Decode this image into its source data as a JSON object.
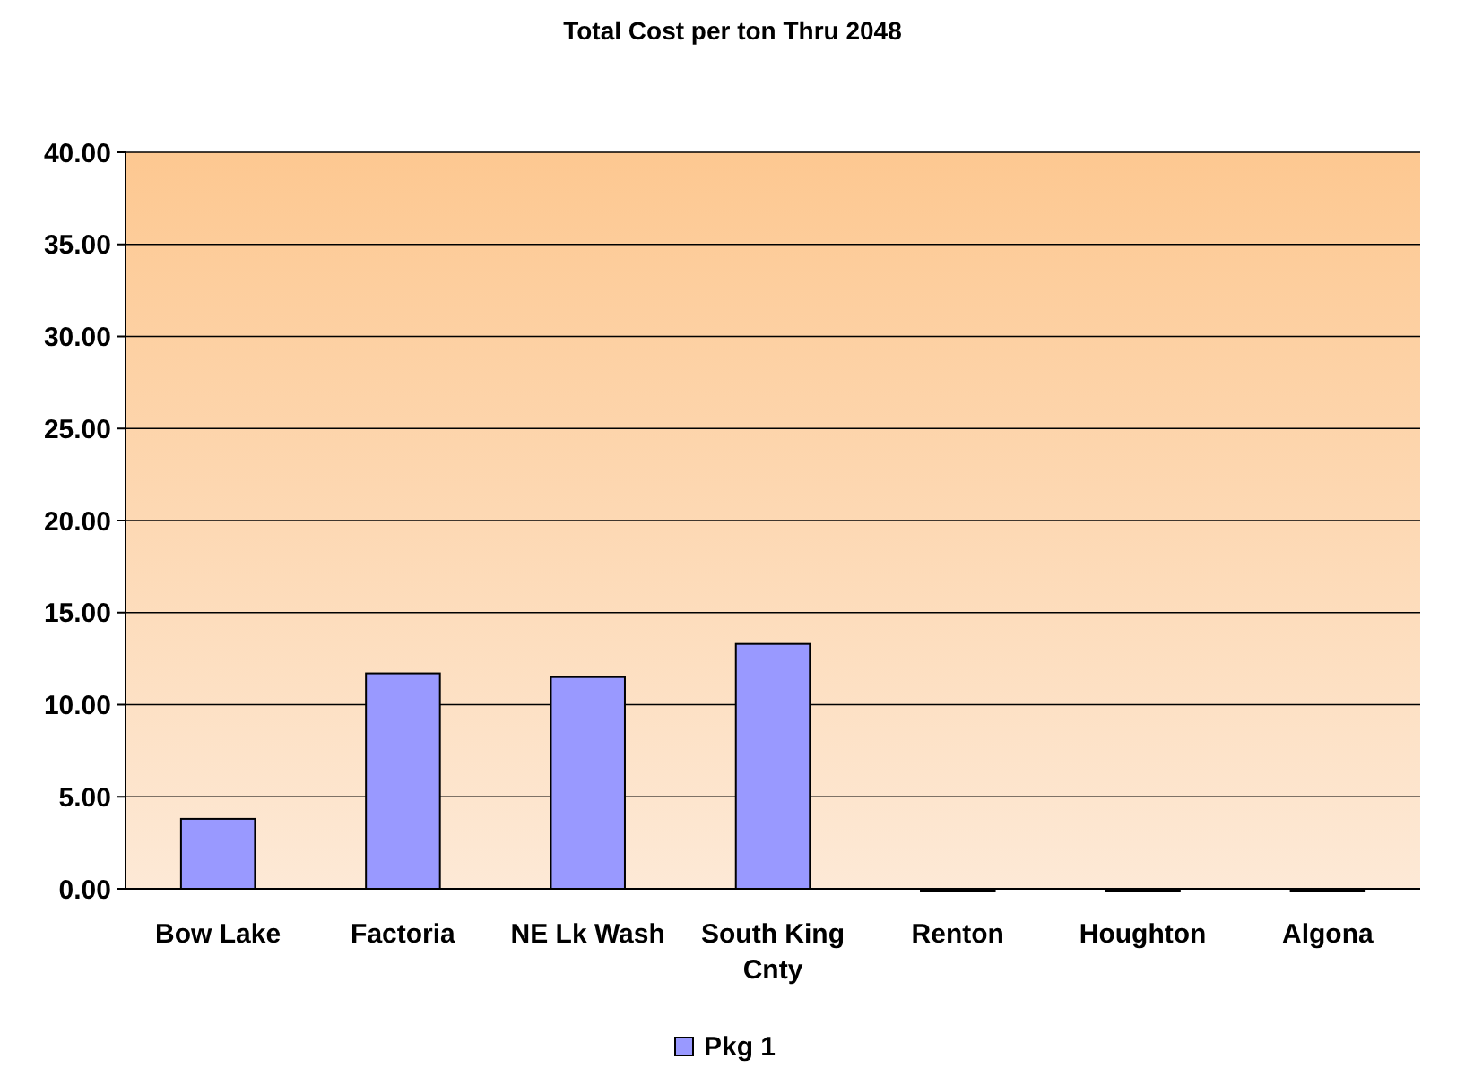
{
  "chart_data": {
    "type": "bar",
    "title": "Total Cost per ton Thru 2048",
    "categories": [
      "Bow Lake",
      "Factoria",
      "NE Lk Wash",
      "South King Cnty",
      "Renton",
      "Houghton",
      "Algona"
    ],
    "series": [
      {
        "name": "Pkg 1",
        "color": "#9999ff",
        "values": [
          3.8,
          11.7,
          11.5,
          13.3,
          0,
          0,
          0
        ]
      }
    ],
    "ylim": [
      0,
      40
    ],
    "yticks": [
      {
        "value": 0,
        "label": "0.00"
      },
      {
        "value": 5,
        "label": "5.00"
      },
      {
        "value": 10,
        "label": "10.00"
      },
      {
        "value": 15,
        "label": "15.00"
      },
      {
        "value": 20,
        "label": "20.00"
      },
      {
        "value": 25,
        "label": "25.00"
      },
      {
        "value": 30,
        "label": "30.00"
      },
      {
        "value": 35,
        "label": "35.00"
      },
      {
        "value": 40,
        "label": "40.00"
      }
    ],
    "grid": "y",
    "legend": "bottom"
  }
}
